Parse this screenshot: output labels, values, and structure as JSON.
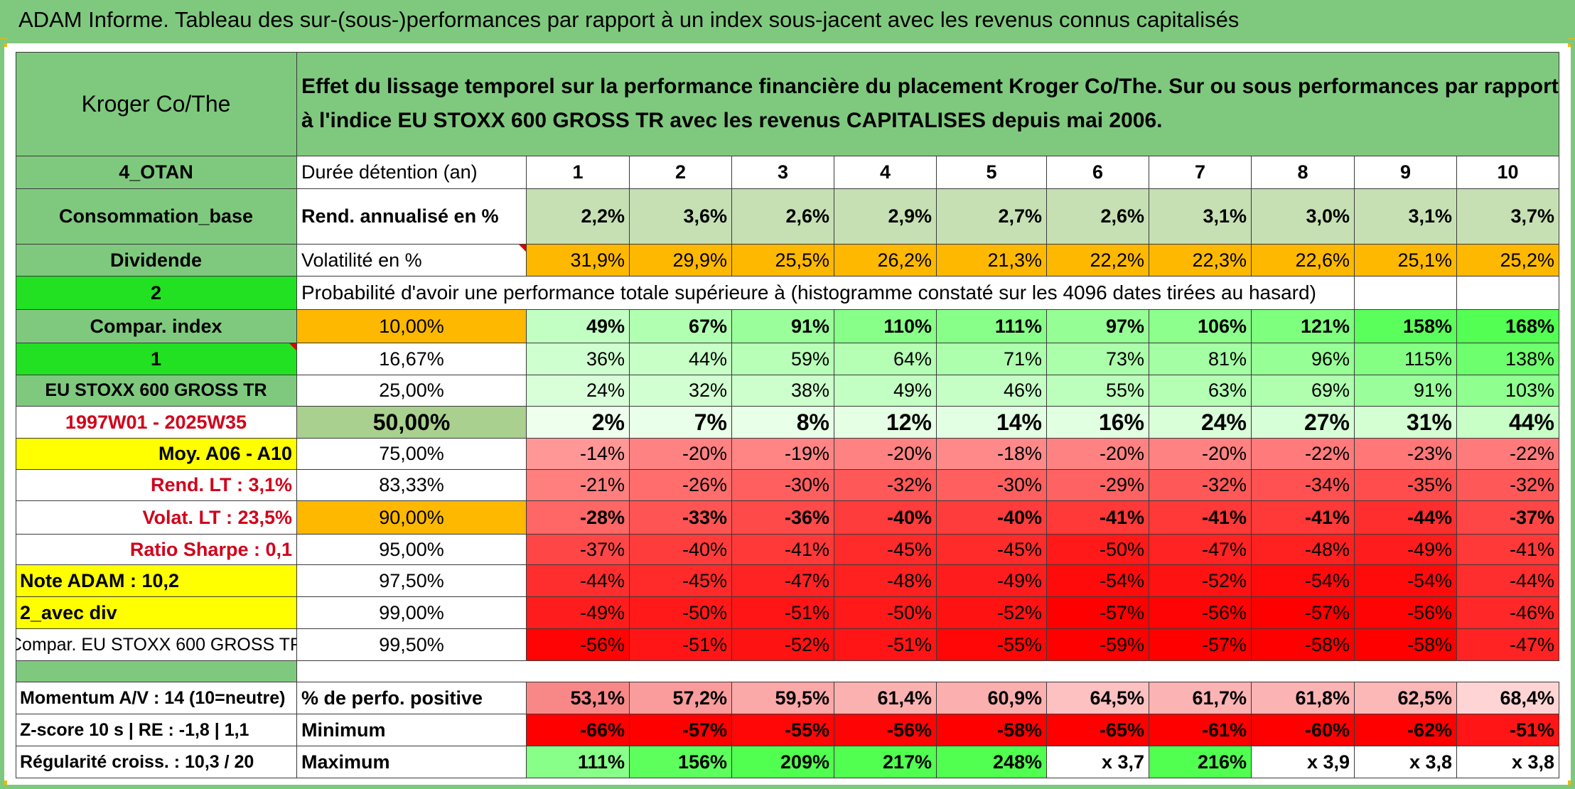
{
  "title": "ADAM Informe. Tableau des sur-(sous-)performances par rapport à un index sous-jacent avec les revenus connus capitalisés",
  "header": {
    "name": "Kroger Co/The",
    "description": "Effet du lissage temporel sur la performance financière du placement Kroger Co/The. Sur ou sous performances par rapport à l'indice EU STOXX 600 GROSS TR avec les revenus CAPITALISES depuis mai 2006."
  },
  "left": {
    "otan": "4_OTAN",
    "sector": "Consommation_base",
    "dividende": "Dividende",
    "two": "2",
    "compar_index": "Compar. index",
    "one": "1",
    "index_name": "EU STOXX 600 GROSS TR",
    "period": "1997W01 - 2025W35",
    "moy": "Moy. A06 - A10",
    "rend_lt": "Rend. LT :   3,1%",
    "volat_lt": "Volat. LT :   23,5%",
    "sharpe": "Ratio Sharpe :   0,1",
    "note": "Note ADAM : 10,2",
    "avec_div": "2_avec div",
    "compar_full": "Compar. EU STOXX 600 GROSS TR",
    "momentum": "Momentum A/V : 14 (10=neutre)",
    "zscore": "Z-score 10 s | RE : -1,8 | 1,1",
    "regularite": "Régularité croiss. : 10,3 / 20"
  },
  "labels": {
    "duree": "Durée détention (an)",
    "rend": "Rend. annualisé en %",
    "vol": "Volatilité en %",
    "proba": "Probabilité d'avoir une performance totale supérieure à (histogramme constaté sur les 4096 dates tirées au hasard)",
    "perfo_pos": "% de perfo. positive",
    "minimum": "Minimum",
    "maximum": "Maximum"
  },
  "years": [
    "1",
    "2",
    "3",
    "4",
    "5",
    "6",
    "7",
    "8",
    "9",
    "10"
  ],
  "rend": [
    "2,2%",
    "3,6%",
    "2,6%",
    "2,9%",
    "2,7%",
    "2,6%",
    "3,1%",
    "3,0%",
    "3,1%",
    "3,7%"
  ],
  "vol": [
    "31,9%",
    "29,9%",
    "25,5%",
    "26,2%",
    "21,3%",
    "22,2%",
    "22,3%",
    "22,6%",
    "25,1%",
    "25,2%"
  ],
  "thresholds": [
    "10,00%",
    "16,67%",
    "25,00%",
    "50,00%",
    "75,00%",
    "83,33%",
    "90,00%",
    "95,00%",
    "97,50%",
    "99,00%",
    "99,50%"
  ],
  "proba_rows": [
    [
      "49%",
      "67%",
      "91%",
      "110%",
      "111%",
      "97%",
      "106%",
      "121%",
      "158%",
      "168%"
    ],
    [
      "36%",
      "44%",
      "59%",
      "64%",
      "71%",
      "73%",
      "81%",
      "96%",
      "115%",
      "138%"
    ],
    [
      "24%",
      "32%",
      "38%",
      "49%",
      "46%",
      "55%",
      "63%",
      "69%",
      "91%",
      "103%"
    ],
    [
      "2%",
      "7%",
      "8%",
      "12%",
      "14%",
      "16%",
      "24%",
      "27%",
      "31%",
      "44%"
    ],
    [
      "-14%",
      "-20%",
      "-19%",
      "-20%",
      "-18%",
      "-20%",
      "-20%",
      "-22%",
      "-23%",
      "-22%"
    ],
    [
      "-21%",
      "-26%",
      "-30%",
      "-32%",
      "-30%",
      "-29%",
      "-32%",
      "-34%",
      "-35%",
      "-32%"
    ],
    [
      "-28%",
      "-33%",
      "-36%",
      "-40%",
      "-40%",
      "-41%",
      "-41%",
      "-41%",
      "-44%",
      "-37%"
    ],
    [
      "-37%",
      "-40%",
      "-41%",
      "-45%",
      "-45%",
      "-50%",
      "-47%",
      "-48%",
      "-49%",
      "-41%"
    ],
    [
      "-44%",
      "-45%",
      "-47%",
      "-48%",
      "-49%",
      "-54%",
      "-52%",
      "-54%",
      "-54%",
      "-44%"
    ],
    [
      "-49%",
      "-50%",
      "-51%",
      "-50%",
      "-52%",
      "-57%",
      "-56%",
      "-57%",
      "-56%",
      "-46%"
    ],
    [
      "-56%",
      "-51%",
      "-52%",
      "-51%",
      "-55%",
      "-59%",
      "-57%",
      "-58%",
      "-58%",
      "-47%"
    ]
  ],
  "perfo_pos": [
    "53,1%",
    "57,2%",
    "59,5%",
    "61,4%",
    "60,9%",
    "64,5%",
    "61,7%",
    "61,8%",
    "62,5%",
    "68,4%"
  ],
  "minimum": [
    "-66%",
    "-57%",
    "-55%",
    "-56%",
    "-58%",
    "-65%",
    "-61%",
    "-60%",
    "-62%",
    "-51%"
  ],
  "maximum": [
    "111%",
    "156%",
    "209%",
    "217%",
    "248%",
    "x 3,7",
    "216%",
    "x 3,9",
    "x 3,8",
    "x 3,8"
  ],
  "colors": {
    "title_green": "#7fc97f",
    "cell_green": "#7fc97f",
    "bright_green": "#22e022",
    "yellow": "#ffff00",
    "orange": "#ffb800",
    "rend_green": "#c6e0b4",
    "highlight_green": "#a9d08e",
    "red_text": "#d0021b"
  }
}
